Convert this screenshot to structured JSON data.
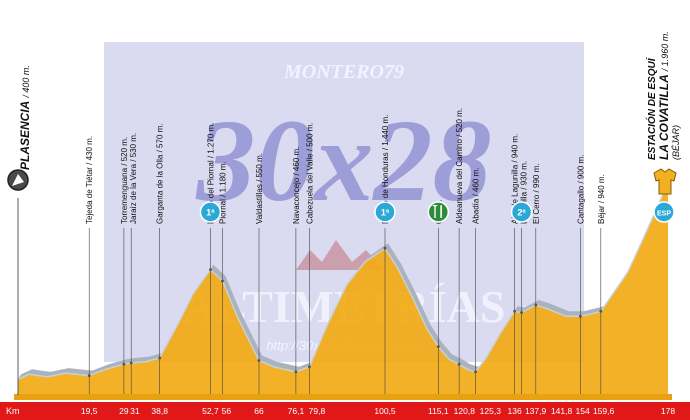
{
  "watermark": {
    "top": "MONTERO79",
    "middle": "30x28",
    "bottom": "ALTIMETRÍAS",
    "url": "http://30x28altimetrias.com"
  },
  "start": {
    "name": "PLASENCIA",
    "alt": "400 m."
  },
  "finish": {
    "name": "ESTACIÓN DE ESQUÍ LA COVATILLA",
    "line1": "ESTACIÓN DE ESQUÍ",
    "line2": "LA COVATILLA",
    "alt": "1.960 m.",
    "sub": "(BÉJAR)"
  },
  "axis": {
    "unit_label": "Km",
    "ticks": [
      "0",
      "19,5",
      "29",
      "31",
      "38,8",
      "52,7",
      "56",
      "66",
      "76,1",
      "79,8",
      "100,5",
      "115,1",
      "120,8",
      "125,3",
      "136",
      "137,9",
      "141,8",
      "154",
      "159,6",
      "178"
    ]
  },
  "badges": [
    {
      "km": 52.7,
      "text": "1ª",
      "color": "#2aa9d6",
      "icon": "category-1-climb-icon"
    },
    {
      "km": 100.5,
      "text": "1ª",
      "color": "#2aa9d6",
      "icon": "category-1-climb-icon"
    },
    {
      "km": 115.1,
      "text": "",
      "color": "#2e8b3a",
      "icon": "feed-zone-icon"
    },
    {
      "km": 137.9,
      "text": "2ª",
      "color": "#2aa9d6",
      "icon": "category-2-climb-icon"
    },
    {
      "km": 178,
      "text": "ESP",
      "color": "#2aa9d6",
      "icon": "special-category-icon"
    }
  ],
  "waypoints": [
    {
      "km": 19.5,
      "label": "Tejeda de Tiétar / 430 m."
    },
    {
      "km": 29,
      "label": "Torremenguana / 520 m."
    },
    {
      "km": 31,
      "label": "Jaraíz de la Vera / 530 m."
    },
    {
      "km": 38.8,
      "label": "Garganta de la Olla / 570 m."
    },
    {
      "km": 52.7,
      "label": "Puerto del Piornal / 1.270 m."
    },
    {
      "km": 56,
      "label": "Piornal / 1.180 m."
    },
    {
      "km": 66,
      "label": "Valdastillas / 550 m."
    },
    {
      "km": 76.1,
      "label": "Navaconcejo / 460 m."
    },
    {
      "km": 79.8,
      "label": "Cabezuela del Valle / 500 m."
    },
    {
      "km": 100.5,
      "label": "Puerto de Honduras / 1.440 m."
    },
    {
      "km": 115.1,
      "label": "660 m."
    },
    {
      "km": 120.8,
      "label": "Aldeanueva del Camino / 520 m."
    },
    {
      "km": 125.3,
      "label": "Abadía / 460 m."
    },
    {
      "km": 136,
      "label": "Alto de Lagunilla / 940 m."
    },
    {
      "km": 137.9,
      "label": "Lagunilla / 930 m."
    },
    {
      "km": 141.8,
      "label": "El Cerro / 990 m."
    },
    {
      "km": 154,
      "label": "Cantagallo / 900 m."
    },
    {
      "km": 159.6,
      "label": "Béjar / 940 m."
    }
  ],
  "chart_data": {
    "type": "area",
    "title": "",
    "xlabel": "Km",
    "ylabel": "",
    "xlim": [
      0,
      178
    ],
    "ylim": [
      300,
      2100
    ],
    "grid": false,
    "series": [
      {
        "x": [
          0,
          3,
          8,
          13,
          19.5,
          24,
          29,
          31,
          35,
          38.8,
          44,
          48,
          52.7,
          56,
          60,
          66,
          70,
          76.1,
          79.8,
          85,
          90,
          95,
          100.5,
          104,
          108,
          112,
          115.1,
          118,
          120.8,
          123,
          125.3,
          128,
          132,
          136,
          137.9,
          141.8,
          145,
          150,
          154,
          157,
          159.6,
          163,
          167,
          171,
          175,
          178
        ],
        "values": [
          400,
          440,
          420,
          450,
          430,
          480,
          520,
          530,
          540,
          570,
          850,
          1080,
          1270,
          1180,
          900,
          550,
          500,
          460,
          500,
          850,
          1150,
          1330,
          1440,
          1280,
          1050,
          800,
          660,
          560,
          520,
          480,
          460,
          560,
          760,
          940,
          930,
          990,
          960,
          900,
          900,
          920,
          940,
          1080,
          1250,
          1500,
          1760,
          1960
        ]
      }
    ]
  }
}
